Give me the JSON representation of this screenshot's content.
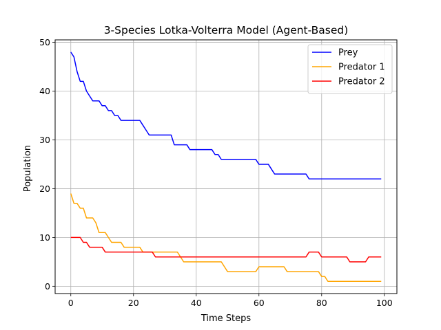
{
  "chart_data": {
    "type": "line",
    "title": "3-Species Lotka-Volterra Model (Agent-Based)",
    "xlabel": "Time Steps",
    "ylabel": "Population",
    "xlim": [
      -5,
      104
    ],
    "ylim": [
      -1.5,
      50.5
    ],
    "xticks": [
      0,
      20,
      40,
      60,
      80,
      100
    ],
    "yticks": [
      0,
      10,
      20,
      30,
      40,
      50
    ],
    "grid": true,
    "legend_position": "top-right",
    "series": [
      {
        "name": "Prey",
        "color": "#0000ff",
        "values": [
          48,
          47,
          44,
          42,
          42,
          40,
          39,
          38,
          38,
          38,
          37,
          37,
          36,
          36,
          35,
          35,
          34,
          34,
          34,
          34,
          34,
          34,
          34,
          33,
          32,
          31,
          31,
          31,
          31,
          31,
          31,
          31,
          31,
          29,
          29,
          29,
          29,
          29,
          28,
          28,
          28,
          28,
          28,
          28,
          28,
          28,
          27,
          27,
          26,
          26,
          26,
          26,
          26,
          26,
          26,
          26,
          26,
          26,
          26,
          26,
          25,
          25,
          25,
          25,
          24,
          23,
          23,
          23,
          23,
          23,
          23,
          23,
          23,
          23,
          23,
          23,
          22,
          22,
          22,
          22,
          22,
          22,
          22,
          22,
          22,
          22,
          22,
          22,
          22,
          22,
          22,
          22,
          22,
          22,
          22,
          22,
          22,
          22,
          22,
          22
        ]
      },
      {
        "name": "Predator 1",
        "color": "#ffa500",
        "values": [
          19,
          17,
          17,
          16,
          16,
          14,
          14,
          14,
          13,
          11,
          11,
          11,
          10,
          9,
          9,
          9,
          9,
          8,
          8,
          8,
          8,
          8,
          8,
          7,
          7,
          7,
          7,
          7,
          7,
          7,
          7,
          7,
          7,
          7,
          7,
          6,
          5,
          5,
          5,
          5,
          5,
          5,
          5,
          5,
          5,
          5,
          5,
          5,
          5,
          4,
          3,
          3,
          3,
          3,
          3,
          3,
          3,
          3,
          3,
          3,
          4,
          4,
          4,
          4,
          4,
          4,
          4,
          4,
          4,
          3,
          3,
          3,
          3,
          3,
          3,
          3,
          3,
          3,
          3,
          3,
          2,
          2,
          1,
          1,
          1,
          1,
          1,
          1,
          1,
          1,
          1,
          1,
          1,
          1,
          1,
          1,
          1,
          1,
          1,
          1
        ]
      },
      {
        "name": "Predator 2",
        "color": "#ff0000",
        "values": [
          10,
          10,
          10,
          10,
          9,
          9,
          8,
          8,
          8,
          8,
          8,
          7,
          7,
          7,
          7,
          7,
          7,
          7,
          7,
          7,
          7,
          7,
          7,
          7,
          7,
          7,
          7,
          6,
          6,
          6,
          6,
          6,
          6,
          6,
          6,
          6,
          6,
          6,
          6,
          6,
          6,
          6,
          6,
          6,
          6,
          6,
          6,
          6,
          6,
          6,
          6,
          6,
          6,
          6,
          6,
          6,
          6,
          6,
          6,
          6,
          6,
          6,
          6,
          6,
          6,
          6,
          6,
          6,
          6,
          6,
          6,
          6,
          6,
          6,
          6,
          6,
          7,
          7,
          7,
          7,
          6,
          6,
          6,
          6,
          6,
          6,
          6,
          6,
          6,
          5,
          5,
          5,
          5,
          5,
          5,
          6,
          6,
          6,
          6,
          6
        ]
      }
    ]
  }
}
